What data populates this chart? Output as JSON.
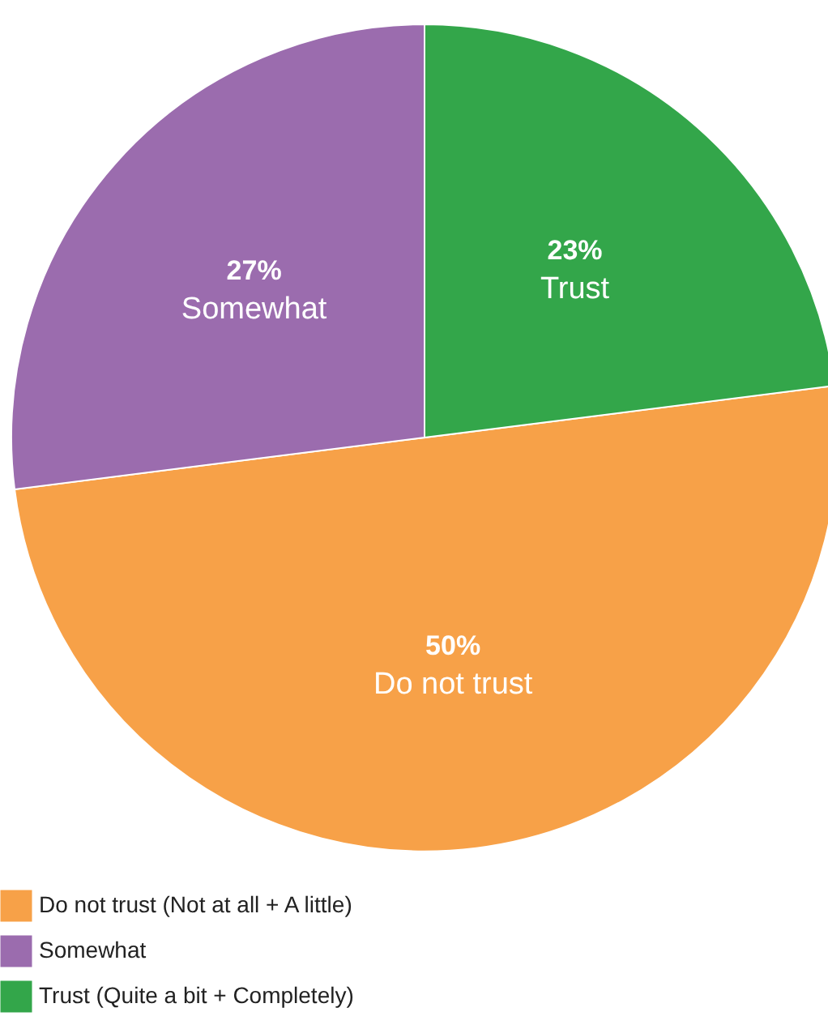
{
  "chart_data": {
    "type": "pie",
    "categories": [
      "Do not trust",
      "Somewhat",
      "Trust"
    ],
    "values": [
      50,
      27,
      23
    ],
    "value_labels": [
      "50%",
      "27%",
      "23%"
    ],
    "colors": [
      "#f7a148",
      "#9b6cae",
      "#33a64a"
    ],
    "annotations": [
      {
        "text": "Do not trust (Not at all + A little)",
        "x": "Do not trust"
      },
      {
        "text": "Trust (Quite a bit + Completely)",
        "x": "Trust"
      }
    ],
    "legend": "bottom"
  }
}
